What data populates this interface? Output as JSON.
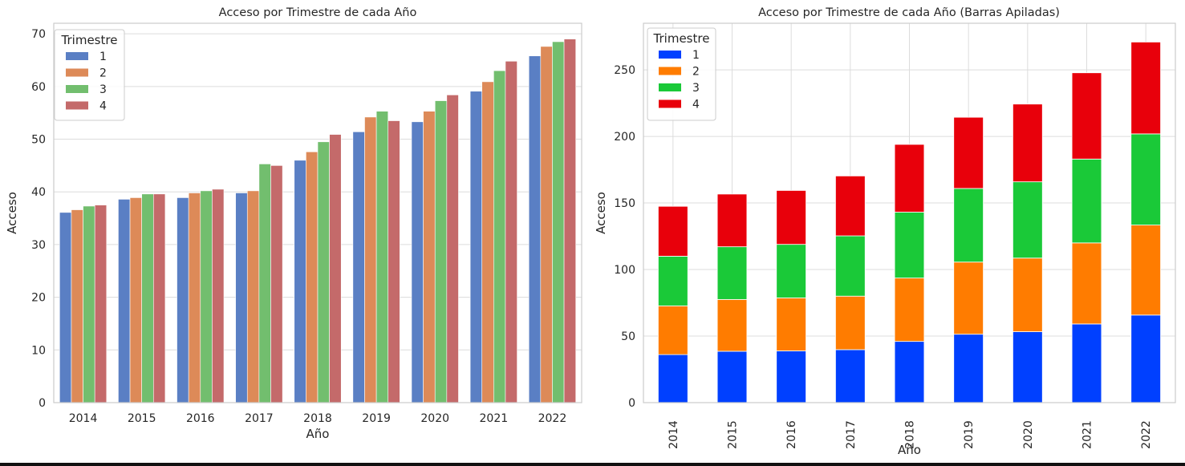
{
  "chart_data": [
    {
      "type": "bar",
      "title": "Acceso por Trimestre de cada Año",
      "xlabel": "Año",
      "ylabel": "Acceso",
      "categories": [
        "2014",
        "2015",
        "2016",
        "2017",
        "2018",
        "2019",
        "2020",
        "2021",
        "2022"
      ],
      "ylim": [
        0,
        72
      ],
      "yticks": [
        0,
        10,
        20,
        30,
        40,
        50,
        60,
        70
      ],
      "legend": {
        "title": "Trimestre",
        "position": "top-left"
      },
      "grid": true,
      "series": [
        {
          "name": "1",
          "color": "#5a7fc4",
          "values": [
            36.1,
            38.6,
            38.9,
            39.8,
            46.0,
            51.4,
            53.3,
            59.1,
            65.8
          ]
        },
        {
          "name": "2",
          "color": "#dd8a58",
          "values": [
            36.6,
            38.9,
            39.8,
            40.2,
            47.6,
            54.2,
            55.3,
            60.9,
            67.6
          ]
        },
        {
          "name": "3",
          "color": "#72be6e",
          "values": [
            37.3,
            39.6,
            40.2,
            45.3,
            49.5,
            55.3,
            57.3,
            63.0,
            68.5
          ]
        },
        {
          "name": "4",
          "color": "#c46a6a",
          "values": [
            37.5,
            39.6,
            40.5,
            45.0,
            50.9,
            53.5,
            58.4,
            64.8,
            69.0
          ]
        }
      ]
    },
    {
      "type": "bar",
      "stacked": true,
      "title": "Acceso por Trimestre de cada Año (Barras Apiladas)",
      "xlabel": "Año",
      "ylabel": "Acceso",
      "categories": [
        "2014",
        "2015",
        "2016",
        "2017",
        "2018",
        "2019",
        "2020",
        "2021",
        "2022"
      ],
      "ylim": [
        0,
        285
      ],
      "yticks": [
        0,
        50,
        100,
        150,
        200,
        250
      ],
      "legend": {
        "title": "Trimestre",
        "position": "top-left"
      },
      "grid": true,
      "series": [
        {
          "name": "1",
          "color": "#0040ff",
          "values": [
            36.1,
            38.6,
            38.9,
            39.8,
            46.0,
            51.4,
            53.3,
            59.1,
            65.8
          ]
        },
        {
          "name": "2",
          "color": "#ff7c00",
          "values": [
            36.6,
            38.9,
            39.8,
            40.2,
            47.6,
            54.2,
            55.3,
            60.9,
            67.6
          ]
        },
        {
          "name": "3",
          "color": "#1ac938",
          "values": [
            37.3,
            39.6,
            40.2,
            45.3,
            49.5,
            55.3,
            57.3,
            63.0,
            68.5
          ]
        },
        {
          "name": "4",
          "color": "#e8000b",
          "values": [
            37.5,
            39.6,
            40.5,
            45.0,
            50.9,
            53.5,
            58.4,
            64.8,
            69.0
          ]
        }
      ]
    }
  ]
}
